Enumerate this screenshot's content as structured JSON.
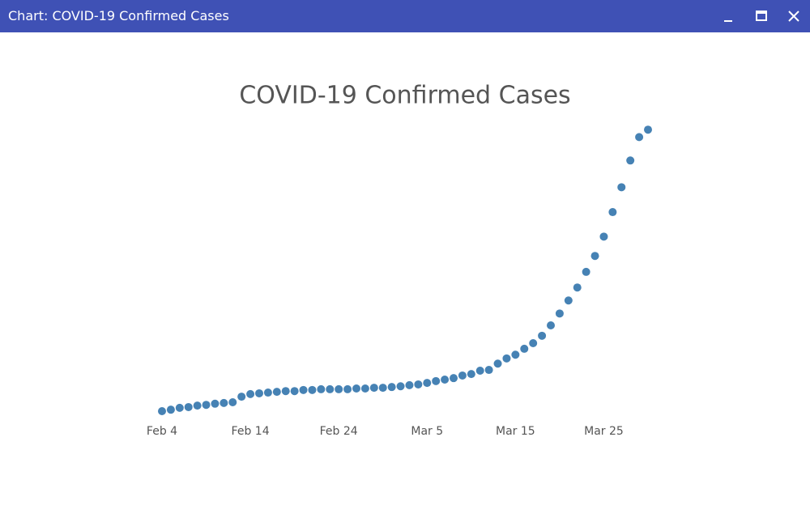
{
  "window": {
    "title": "Chart: COVID-19 Confirmed Cases"
  },
  "chart_data": {
    "type": "scatter",
    "title": "COVID-19 Confirmed Cases",
    "color": "#4682b4",
    "x": [
      "Feb 4",
      "Feb 5",
      "Feb 6",
      "Feb 7",
      "Feb 8",
      "Feb 9",
      "Feb 10",
      "Feb 11",
      "Feb 12",
      "Feb 13",
      "Feb 14",
      "Feb 15",
      "Feb 16",
      "Feb 17",
      "Feb 18",
      "Feb 19",
      "Feb 20",
      "Feb 21",
      "Feb 22",
      "Feb 23",
      "Feb 24",
      "Feb 25",
      "Feb 26",
      "Feb 27",
      "Feb 28",
      "Feb 29",
      "Mar 1",
      "Mar 2",
      "Mar 3",
      "Mar 4",
      "Mar 5",
      "Mar 6",
      "Mar 7",
      "Mar 8",
      "Mar 9",
      "Mar 10",
      "Mar 11",
      "Mar 12",
      "Mar 13",
      "Mar 14",
      "Mar 15",
      "Mar 16",
      "Mar 17",
      "Mar 18",
      "Mar 19",
      "Mar 20",
      "Mar 21",
      "Mar 22",
      "Mar 23",
      "Mar 24",
      "Mar 25",
      "Mar 26",
      "Mar 27",
      "Mar 28",
      "Mar 29",
      "Mar 30"
    ],
    "values": [
      24000,
      28000,
      33000,
      35000,
      39000,
      41000,
      44000,
      46000,
      48000,
      63000,
      70000,
      72000,
      74000,
      76000,
      78000,
      78000,
      81000,
      81000,
      83000,
      83000,
      83000,
      83000,
      85000,
      85000,
      87000,
      87000,
      89000,
      91000,
      94000,
      96000,
      100000,
      105000,
      109000,
      113000,
      120000,
      124000,
      133000,
      135000,
      152000,
      166000,
      176000,
      192000,
      207000,
      227000,
      255000,
      287000,
      322000,
      357000,
      399000,
      442000,
      494000,
      560000,
      627000,
      699000,
      762000,
      782000
    ],
    "xticks": [
      "Feb 4",
      "Feb 14",
      "Feb 24",
      "Mar 5",
      "Mar 15",
      "Mar 25"
    ],
    "ylim": [
      0,
      850000
    ]
  }
}
